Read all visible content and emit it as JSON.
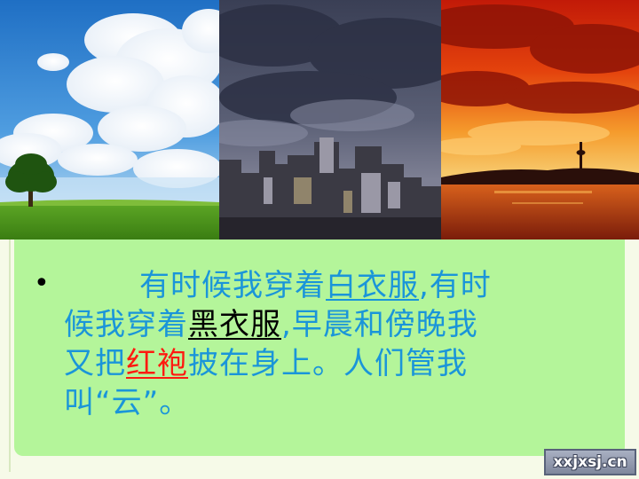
{
  "photos": {
    "left": "sky-with-white-clouds-and-tree",
    "middle": "dark-storm-clouds-over-city",
    "right": "red-sunset-clouds-over-water"
  },
  "content": {
    "bullet_symbol": "•",
    "line1_part1": "有时候我穿着",
    "line1_part2": "白衣服",
    "line1_part3": ",有时",
    "line2_part1": "候我穿着",
    "line2_part2": "黑衣服",
    "line2_part3": ",早晨和傍晚我",
    "line3_part1": "又把",
    "line3_part2": "红袍",
    "line3_part3": "披在身上。人们管我",
    "line4": "叫“云”。"
  },
  "watermark": {
    "text": "xxjxsj.cn"
  },
  "colors": {
    "text_blue": "#1a95d9",
    "text_black": "#000000",
    "text_red": "#ff1a10",
    "panel_green": "#b4f59a"
  }
}
